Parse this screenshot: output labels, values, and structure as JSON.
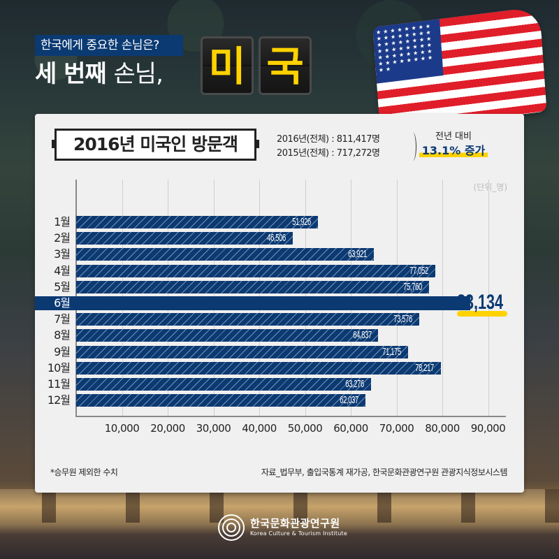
{
  "header": {
    "subtitle": "한국에게 중요한 손님은?",
    "headline_bold": "세 번째",
    "headline_light": "손님,",
    "flap_chars": [
      "미",
      "국"
    ]
  },
  "flag": {
    "icon": "us-flag-icon",
    "stars": "★★★★★★★★★★★★★★★★★★★★★★★★★★★★★★★★★★★★★★★★★★★★★★★★★★"
  },
  "card": {
    "title": "2016년 미국인 방문객",
    "totals": [
      "2016년(전체) : 811,417명",
      "2015년(전체) : 717,272명"
    ],
    "yoy_label": "전년 대비",
    "yoy_value": "13.1% 증가",
    "unit": "(단위_명)",
    "footnote": "*승무원 제외한 수치",
    "source": "자료_법무부, 출입국통계 재가공, 한국문화관광연구원 관광지식정보시스템"
  },
  "colors": {
    "bar": "#0b3a73",
    "highlight": "#ffd200",
    "card_bg": "#f0f0f0",
    "flap_text": "#ffd200"
  },
  "chart_data": {
    "type": "bar",
    "orientation": "horizontal",
    "title": "2016년 미국인 방문객",
    "xlabel": "",
    "ylabel": "",
    "unit": "명",
    "categories": [
      "1월",
      "2월",
      "3월",
      "4월",
      "5월",
      "6월",
      "7월",
      "8월",
      "9월",
      "10월",
      "11월",
      "12월"
    ],
    "values": [
      51926,
      46506,
      63921,
      77052,
      75760,
      83134,
      73576,
      64837,
      71175,
      78217,
      63276,
      62037
    ],
    "value_labels": [
      "51,926",
      "46,506",
      "63,921",
      "77,052",
      "75,760",
      "83,134",
      "73,576",
      "64,837",
      "71,175",
      "78,217",
      "63,276",
      "62,037"
    ],
    "highlight_index": 5,
    "x_ticks": [
      "10,000",
      "20,000",
      "30,000",
      "40,000",
      "50,000",
      "60,000",
      "70,000",
      "80,000",
      "90,000"
    ],
    "xlim": [
      0,
      90000
    ],
    "grid": true,
    "legend": null
  },
  "logo": {
    "name_ko": "한국문화관광연구원",
    "name_en": "Korea Culture & Tourism Institute"
  }
}
